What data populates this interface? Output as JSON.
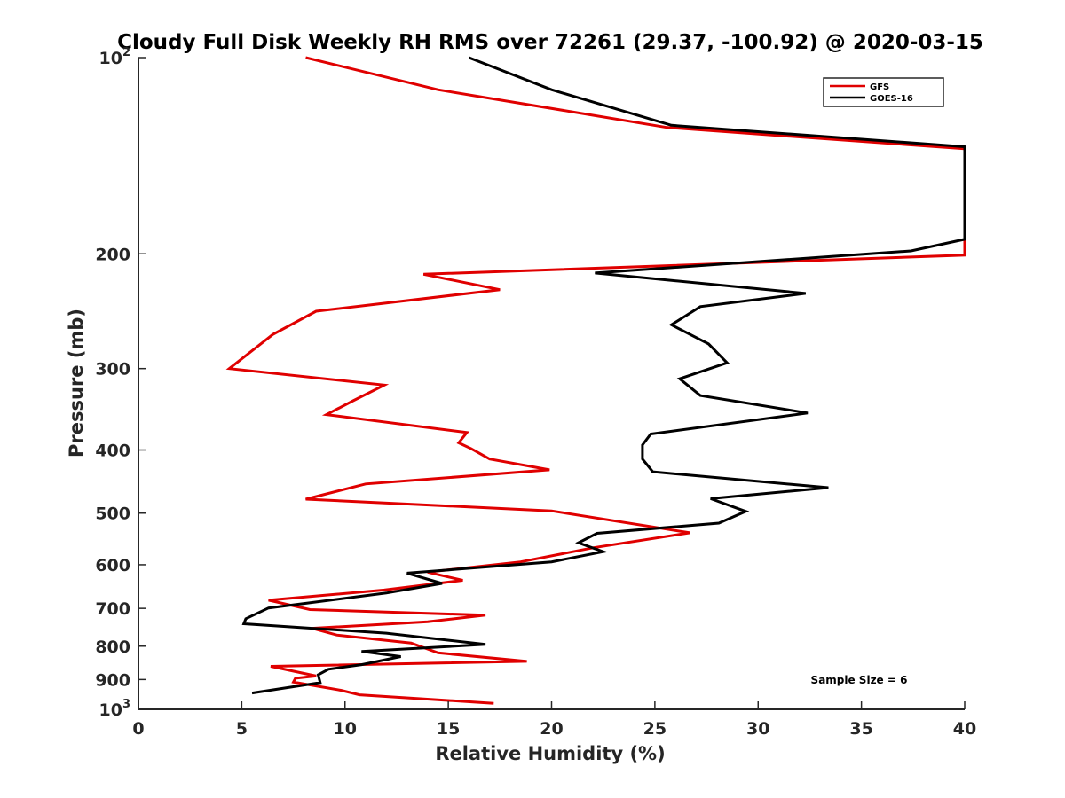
{
  "chart_data": {
    "type": "line",
    "title": "Cloudy Full Disk Weekly RH RMS over 72261 (29.37, -100.92) @ 2020-03-15",
    "xlabel": "Relative Humidity (%)",
    "ylabel": "Pressure (mb)",
    "xlim": [
      0,
      40
    ],
    "ylim": [
      100,
      1000
    ],
    "yscale": "log",
    "y_reversed": true,
    "x_ticks": [
      {
        "value": 0,
        "label": "0"
      },
      {
        "value": 5,
        "label": "5"
      },
      {
        "value": 10,
        "label": "10"
      },
      {
        "value": 15,
        "label": "15"
      },
      {
        "value": 20,
        "label": "20"
      },
      {
        "value": 25,
        "label": "25"
      },
      {
        "value": 30,
        "label": "30"
      },
      {
        "value": 35,
        "label": "35"
      },
      {
        "value": 40,
        "label": "40"
      }
    ],
    "y_ticks": [
      {
        "value": 100,
        "label": "10",
        "sup": "2"
      },
      {
        "value": 200,
        "label": "200"
      },
      {
        "value": 300,
        "label": "300"
      },
      {
        "value": 400,
        "label": "400"
      },
      {
        "value": 500,
        "label": "500"
      },
      {
        "value": 600,
        "label": "600"
      },
      {
        "value": 700,
        "label": "700"
      },
      {
        "value": 800,
        "label": "800"
      },
      {
        "value": 900,
        "label": "900"
      },
      {
        "value": 1000,
        "label": "10",
        "sup": "3"
      }
    ],
    "legend_position": "top-right",
    "annotation": "Sample Size = 6",
    "series": [
      {
        "name": "GFS",
        "color": "#e00000",
        "x": [
          8.1,
          14.5,
          25.6,
          40.0,
          40.0,
          13.8,
          17.5,
          8.6,
          6.5,
          4.4,
          11.9,
          10.4,
          9.1,
          15.9,
          15.5,
          16.1,
          17.0,
          19.9,
          11.0,
          8.1,
          20.0,
          26.7,
          22.0,
          18.5,
          14.0,
          15.7,
          11.9,
          6.3,
          8.3,
          16.8,
          14.0,
          8.4,
          9.6,
          13.2,
          14.5,
          18.8,
          6.4,
          8.6,
          7.6,
          7.5,
          9.8,
          10.7,
          17.2
        ],
        "y": [
          100,
          112,
          128,
          138,
          201,
          215,
          227,
          245,
          266,
          300,
          318,
          336,
          353,
          376,
          390,
          398,
          413,
          429,
          451,
          476,
          496,
          536,
          565,
          594,
          616,
          634,
          656,
          680,
          703,
          717,
          734,
          751,
          769,
          791,
          819,
          844,
          859,
          889,
          896,
          908,
          935,
          950,
          979
        ]
      },
      {
        "name": "GOES-16",
        "color": "#000000",
        "x": [
          16.0,
          20.0,
          25.8,
          40.0,
          40.0,
          37.4,
          22.1,
          32.3,
          27.2,
          25.8,
          27.6,
          28.5,
          26.2,
          27.2,
          32.4,
          24.8,
          24.4,
          24.4,
          24.9,
          33.4,
          27.7,
          29.4,
          28.1,
          22.2,
          21.3,
          22.5,
          20.0,
          13.0,
          14.7,
          12.0,
          6.3,
          5.2,
          5.1,
          12.0,
          16.8,
          10.8,
          12.7,
          10.8,
          9.2,
          8.7,
          8.8,
          5.5
        ],
        "y": [
          100,
          112,
          127,
          137,
          190,
          198,
          214,
          230,
          241,
          257,
          275,
          294,
          311,
          330,
          351,
          378,
          393,
          413,
          432,
          457,
          475,
          497,
          518,
          537,
          555,
          573,
          594,
          618,
          641,
          663,
          699,
          726,
          739,
          764,
          795,
          815,
          830,
          854,
          868,
          885,
          910,
          944
        ]
      }
    ]
  }
}
